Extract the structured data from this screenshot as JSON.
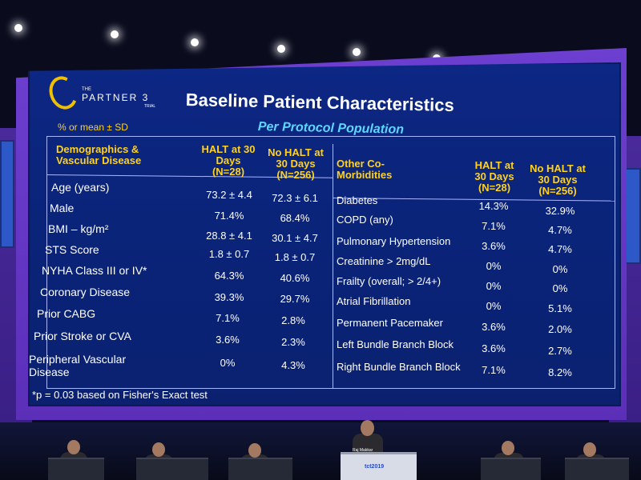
{
  "header": {
    "logo_the": "THE",
    "logo_name": "PARTNER 3",
    "logo_trial": "TRIAL",
    "note": "% or mean ± SD",
    "title": "Baseline Patient Characteristics",
    "subtitle": "Per Protocol Population"
  },
  "left_table": {
    "headers": {
      "label": "Demographics & Vascular Disease",
      "col1": "HALT at 30 Days (N=28)",
      "col2": "No HALT at 30 Days (N=256)"
    },
    "rows": [
      {
        "label": "Age (years)",
        "halt": "73.2 ± 4.4",
        "no_halt": "72.3 ± 6.1"
      },
      {
        "label": "Male",
        "halt": "71.4%",
        "no_halt": "68.4%"
      },
      {
        "label": "BMI – kg/m²",
        "halt": "28.8 ± 4.1",
        "no_halt": "30.1 ± 4.7"
      },
      {
        "label": "STS Score",
        "halt": "1.8 ± 0.7",
        "no_halt": "1.8 ± 0.7"
      },
      {
        "label": "NYHA Class III or IV*",
        "halt": "64.3%",
        "no_halt": "40.6%"
      },
      {
        "label": "Coronary Disease",
        "halt": "39.3%",
        "no_halt": "29.7%"
      },
      {
        "label": "Prior CABG",
        "halt": "7.1%",
        "no_halt": "2.8%"
      },
      {
        "label": "Prior Stroke or CVA",
        "halt": "3.6%",
        "no_halt": "2.3%"
      },
      {
        "label": "Peripheral Vascular Disease",
        "halt": "0%",
        "no_halt": "4.3%"
      }
    ]
  },
  "right_table": {
    "headers": {
      "label": "Other Co-Morbidities",
      "col1": "HALT at 30 Days (N=28)",
      "col2": "No HALT at 30 Days (N=256)"
    },
    "rows": [
      {
        "label": "Diabetes",
        "halt": "14.3%",
        "no_halt": "32.9%"
      },
      {
        "label": "COPD (any)",
        "halt": "7.1%",
        "no_halt": "4.7%"
      },
      {
        "label": "Pulmonary Hypertension",
        "halt": "3.6%",
        "no_halt": "4.7%"
      },
      {
        "label": "Creatinine > 2mg/dL",
        "halt": "0%",
        "no_halt": "0%"
      },
      {
        "label": "Frailty (overall; > 2/4+)",
        "halt": "0%",
        "no_halt": "0%"
      },
      {
        "label": "Atrial Fibrillation",
        "halt": "0%",
        "no_halt": "5.1%"
      },
      {
        "label": "Permanent Pacemaker",
        "halt": "3.6%",
        "no_halt": "2.0%"
      },
      {
        "label": "Left Bundle Branch Block",
        "halt": "3.6%",
        "no_halt": "2.7%"
      },
      {
        "label": "Right Bundle Branch Block",
        "halt": "7.1%",
        "no_halt": "8.2%"
      }
    ]
  },
  "footnote": "*p = 0.03 based on Fisher's Exact test",
  "stage": {
    "podium_name": "Raj Makkar",
    "podium_logo": "tct2019"
  }
}
